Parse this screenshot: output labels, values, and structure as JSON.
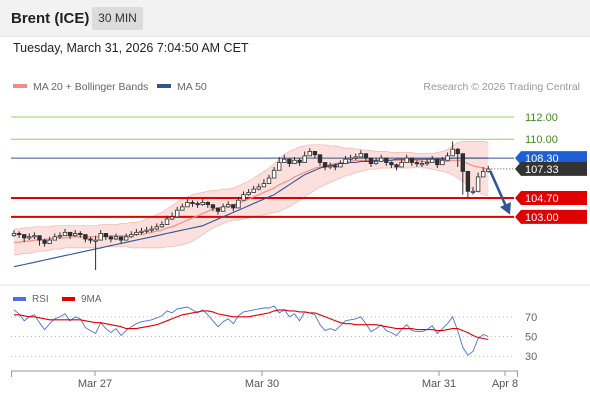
{
  "header": {
    "instrument": "Brent (ICE)",
    "timeframe": "30 MIN"
  },
  "datetime": "Tuesday, March 31, 2026 7:04:50 AM CET",
  "colors": {
    "ma20": "#f28b82",
    "ma50": "#2f5597",
    "bollinger_fill": "#fbd5d3",
    "candle": "#2e2e2e",
    "support": "#e00000",
    "resistance": "#9ccc65",
    "current": "#333333",
    "arrow": "#2f5597",
    "rsi": "#4a73d9",
    "rsi_ma": "#e00000"
  },
  "chart_data": [
    {
      "type": "candlestick",
      "legend": [
        {
          "name": "MA 20 + Bollinger Bands",
          "color": "#f28b82"
        },
        {
          "name": "MA 50",
          "color": "#2f5597"
        }
      ],
      "legend_position": "top-left",
      "credit": "Research © 2026 Trading Central",
      "x_tick_labels": [
        "Mar 27",
        "Mar 30",
        "Mar 31",
        "Apr 8"
      ],
      "ylim": [
        97.3,
        113.9
      ],
      "grid": false,
      "levels": [
        {
          "value": 112.0,
          "label": "112.00",
          "kind": "resistance"
        },
        {
          "value": 110.0,
          "label": "110.00",
          "kind": "resistance"
        },
        {
          "value": 108.3,
          "label": "108.30",
          "kind": "ma50"
        },
        {
          "value": 107.33,
          "label": "107.33",
          "kind": "current"
        },
        {
          "value": 104.7,
          "label": "104.70",
          "kind": "support"
        },
        {
          "value": 103.0,
          "label": "103.00",
          "kind": "support"
        }
      ],
      "close": [
        101.5,
        101.4,
        101.1,
        101.2,
        101.3,
        100.9,
        100.6,
        100.9,
        101.2,
        101.3,
        101.6,
        101.3,
        101.5,
        101.4,
        101.0,
        100.9,
        100.9,
        101.5,
        101.2,
        101.0,
        101.2,
        100.9,
        101.2,
        101.4,
        101.6,
        101.7,
        101.8,
        101.9,
        102.1,
        102.3,
        102.8,
        103.0,
        103.6,
        103.9,
        104.3,
        104.2,
        104.1,
        104.3,
        104.1,
        103.8,
        103.5,
        103.9,
        104.1,
        103.8,
        104.5,
        105.0,
        105.2,
        105.5,
        105.7,
        106.0,
        106.5,
        107.2,
        107.9,
        108.2,
        107.8,
        108.1,
        107.9,
        108.5,
        108.9,
        108.6,
        107.9,
        107.5,
        107.6,
        107.5,
        107.8,
        108.2,
        108.3,
        108.4,
        108.7,
        108.3,
        107.8,
        108.0,
        108.3,
        107.9,
        107.7,
        107.5,
        107.9,
        108.3,
        107.9,
        107.8,
        107.8,
        107.9,
        108.2,
        107.7,
        108.1,
        108.5,
        109.1,
        108.7,
        107.1,
        105.3,
        105.3,
        106.6,
        107.1,
        107.3
      ],
      "high": [
        101.8,
        101.7,
        101.4,
        101.5,
        101.6,
        101.2,
        101.0,
        101.2,
        101.5,
        101.6,
        101.9,
        101.6,
        101.8,
        101.7,
        101.3,
        101.2,
        101.3,
        101.8,
        101.5,
        101.3,
        101.5,
        101.2,
        101.5,
        101.7,
        101.9,
        102.0,
        102.1,
        102.2,
        102.4,
        102.6,
        103.1,
        103.4,
        103.9,
        104.2,
        104.6,
        104.5,
        104.4,
        104.6,
        104.4,
        104.1,
        103.8,
        104.2,
        104.4,
        104.1,
        104.8,
        105.3,
        105.5,
        105.8,
        106.0,
        106.4,
        106.8,
        107.5,
        108.4,
        108.6,
        108.1,
        108.4,
        108.3,
        108.9,
        109.2,
        108.9,
        108.2,
        107.8,
        107.9,
        107.8,
        108.1,
        108.5,
        108.6,
        108.7,
        109.0,
        108.6,
        108.1,
        108.3,
        108.6,
        108.2,
        108.0,
        107.8,
        108.2,
        108.6,
        108.2,
        108.1,
        108.1,
        108.2,
        108.5,
        108.0,
        108.4,
        108.8,
        109.8,
        109.2,
        107.5,
        105.7,
        105.7,
        107.0,
        107.5,
        107.6
      ],
      "low": [
        101.2,
        101.1,
        100.7,
        100.9,
        101.0,
        100.4,
        100.3,
        100.6,
        100.9,
        101.0,
        101.3,
        101.0,
        101.2,
        101.1,
        100.7,
        100.6,
        98.2,
        101.2,
        100.9,
        100.7,
        100.9,
        100.6,
        100.9,
        101.1,
        101.3,
        101.4,
        101.5,
        101.6,
        101.8,
        102.0,
        102.5,
        102.7,
        103.3,
        103.6,
        104.0,
        103.9,
        103.8,
        104.0,
        103.8,
        103.5,
        103.2,
        103.6,
        103.8,
        103.5,
        104.2,
        104.7,
        104.9,
        105.2,
        105.4,
        105.7,
        106.2,
        106.9,
        107.6,
        107.9,
        107.5,
        107.8,
        107.6,
        108.2,
        108.6,
        108.3,
        107.6,
        107.2,
        107.3,
        107.2,
        107.5,
        107.9,
        108.0,
        108.1,
        108.4,
        108.0,
        107.5,
        107.7,
        108.0,
        107.6,
        107.4,
        107.2,
        107.6,
        108.0,
        107.6,
        107.5,
        107.5,
        107.6,
        107.9,
        107.4,
        107.8,
        108.2,
        108.5,
        107.5,
        105.0,
        104.7,
        105.0,
        106.3,
        106.8,
        107.0
      ],
      "ma20": [
        100.7,
        100.7,
        100.8,
        100.8,
        100.9,
        100.9,
        101.0,
        101.0,
        101.1,
        101.1,
        101.1,
        101.2,
        101.2,
        101.2,
        101.2,
        101.2,
        101.2,
        101.2,
        101.3,
        101.3,
        101.3,
        101.3,
        101.3,
        101.3,
        101.4,
        101.4,
        101.5,
        101.6,
        101.7,
        101.8,
        102.0,
        102.1,
        102.3,
        102.5,
        102.7,
        102.9,
        103.1,
        103.3,
        103.5,
        103.7,
        103.8,
        103.9,
        104.0,
        104.1,
        104.2,
        104.4,
        104.6,
        104.8,
        105.0,
        105.2,
        105.4,
        105.6,
        105.9,
        106.1,
        106.3,
        106.6,
        106.8,
        107.0,
        107.2,
        107.4,
        107.5,
        107.6,
        107.7,
        107.8,
        107.9,
        107.9,
        108.0,
        108.1,
        108.1,
        108.1,
        108.1,
        108.1,
        108.1,
        108.1,
        108.1,
        108.1,
        108.1,
        108.1,
        108.1,
        108.1,
        108.0,
        108.0,
        108.0,
        108.0,
        108.0,
        108.0,
        108.1,
        108.1,
        108.0,
        107.8,
        107.6,
        107.5,
        107.4,
        107.3
      ],
      "bb_upper": [
        101.9,
        101.9,
        102.0,
        102.0,
        102.1,
        102.1,
        102.1,
        102.1,
        102.2,
        102.2,
        102.2,
        102.2,
        102.2,
        102.2,
        102.2,
        102.2,
        102.2,
        102.3,
        102.3,
        102.3,
        102.3,
        102.4,
        102.4,
        102.5,
        102.5,
        102.6,
        102.8,
        103.0,
        103.2,
        103.4,
        103.7,
        104.0,
        104.3,
        104.6,
        104.8,
        105.0,
        105.1,
        105.2,
        105.3,
        105.4,
        105.4,
        105.5,
        105.5,
        105.6,
        105.8,
        106.0,
        106.2,
        106.5,
        106.8,
        107.1,
        107.4,
        107.8,
        108.2,
        108.6,
        108.9,
        109.1,
        109.3,
        109.4,
        109.5,
        109.5,
        109.5,
        109.5,
        109.4,
        109.4,
        109.3,
        109.2,
        109.2,
        109.1,
        109.1,
        109.0,
        109.0,
        108.9,
        108.9,
        108.9,
        108.8,
        108.8,
        108.8,
        108.8,
        108.8,
        108.7,
        108.7,
        108.7,
        108.7,
        108.8,
        108.9,
        109.1,
        109.4,
        109.7,
        109.8,
        109.8,
        109.8,
        109.8,
        109.8,
        109.7
      ],
      "bb_lower": [
        99.6,
        99.6,
        99.7,
        99.7,
        99.8,
        99.9,
        99.9,
        100.0,
        100.1,
        100.1,
        100.2,
        100.2,
        100.2,
        100.2,
        100.2,
        100.2,
        100.2,
        100.2,
        100.3,
        100.3,
        100.3,
        100.3,
        100.3,
        100.2,
        100.2,
        100.2,
        100.2,
        100.2,
        100.2,
        100.2,
        100.3,
        100.3,
        100.4,
        100.5,
        100.6,
        100.8,
        101.1,
        101.4,
        101.7,
        102.0,
        102.2,
        102.4,
        102.6,
        102.7,
        102.7,
        102.8,
        102.9,
        103.0,
        103.1,
        103.2,
        103.3,
        103.4,
        103.5,
        103.7,
        103.9,
        104.2,
        104.5,
        104.8,
        105.1,
        105.4,
        105.7,
        105.9,
        106.1,
        106.3,
        106.5,
        106.7,
        106.8,
        107.0,
        107.1,
        107.2,
        107.3,
        107.3,
        107.4,
        107.4,
        107.4,
        107.4,
        107.4,
        107.4,
        107.4,
        107.5,
        107.4,
        107.4,
        107.3,
        107.2,
        107.1,
        107.0,
        106.8,
        106.5,
        106.2,
        105.8,
        105.4,
        105.2,
        105.0,
        104.9
      ],
      "ma50": [
        98.5,
        98.6,
        98.7,
        98.8,
        98.9,
        99.0,
        99.1,
        99.2,
        99.3,
        99.4,
        99.5,
        99.6,
        99.7,
        99.8,
        99.9,
        100.0,
        100.1,
        100.2,
        100.3,
        100.4,
        100.5,
        100.6,
        100.7,
        100.8,
        100.9,
        101.0,
        101.1,
        101.2,
        101.3,
        101.4,
        101.5,
        101.6,
        101.7,
        101.8,
        101.9,
        102.0,
        102.1,
        102.2,
        102.4,
        102.6,
        102.8,
        103.0,
        103.2,
        103.4,
        103.6,
        103.8,
        104.0,
        104.2,
        104.4,
        104.6,
        104.8,
        105.0,
        105.3,
        105.6,
        105.9,
        106.2,
        106.5,
        106.8,
        107.0,
        107.2,
        107.4,
        107.5,
        107.6,
        107.7,
        107.8,
        107.8,
        107.9,
        107.9,
        108.0,
        108.0,
        108.0,
        108.1,
        108.1,
        108.1,
        108.1,
        108.2,
        108.2,
        108.2,
        108.2,
        108.2,
        108.2,
        108.2,
        108.2,
        108.2,
        108.2,
        108.2,
        108.3,
        108.3,
        108.3,
        108.3,
        108.3,
        108.3,
        108.3,
        108.3
      ]
    },
    {
      "type": "line",
      "legend": [
        {
          "name": "RSI",
          "color": "#4a73d9"
        },
        {
          "name": "9MA",
          "color": "#e00000"
        }
      ],
      "legend_position": "top-left",
      "ylim": [
        18,
        82
      ],
      "y_tick_labels": [
        "70",
        "50",
        "30"
      ],
      "reference_lines": [
        70,
        50,
        30
      ],
      "series": [
        {
          "name": "RSI",
          "values": [
            77,
            73,
            66,
            70,
            72,
            64,
            57,
            63,
            68,
            70,
            73,
            66,
            70,
            68,
            59,
            56,
            53,
            64,
            58,
            54,
            58,
            51,
            56,
            60,
            63,
            65,
            66,
            67,
            69,
            71,
            76,
            74,
            78,
            79,
            80,
            77,
            74,
            77,
            72,
            66,
            60,
            65,
            68,
            63,
            71,
            75,
            76,
            77,
            78,
            79,
            79,
            81,
            74,
            77,
            70,
            73,
            66,
            75,
            74,
            72,
            62,
            56,
            58,
            56,
            61,
            66,
            67,
            68,
            70,
            63,
            55,
            58,
            62,
            56,
            54,
            51,
            57,
            62,
            56,
            55,
            55,
            57,
            61,
            53,
            58,
            63,
            70,
            56,
            39,
            31,
            35,
            48,
            52,
            50
          ]
        },
        {
          "name": "9MA",
          "values": [
            72,
            72,
            71,
            70,
            70,
            69,
            68,
            67,
            67,
            67,
            67,
            67,
            67,
            67,
            66,
            65,
            64,
            64,
            63,
            62,
            61,
            60,
            58,
            58,
            58,
            59,
            60,
            61,
            62,
            64,
            66,
            68,
            70,
            72,
            73,
            74,
            75,
            76,
            76,
            75,
            73,
            72,
            71,
            70,
            70,
            70,
            70,
            71,
            72,
            73,
            74,
            76,
            77,
            77,
            76,
            76,
            75,
            75,
            74,
            74,
            72,
            70,
            68,
            66,
            64,
            63,
            63,
            62,
            62,
            62,
            62,
            62,
            61,
            60,
            59,
            58,
            58,
            58,
            58,
            57,
            57,
            57,
            57,
            56,
            56,
            57,
            58,
            58,
            56,
            54,
            51,
            49,
            48,
            47
          ]
        }
      ]
    }
  ]
}
